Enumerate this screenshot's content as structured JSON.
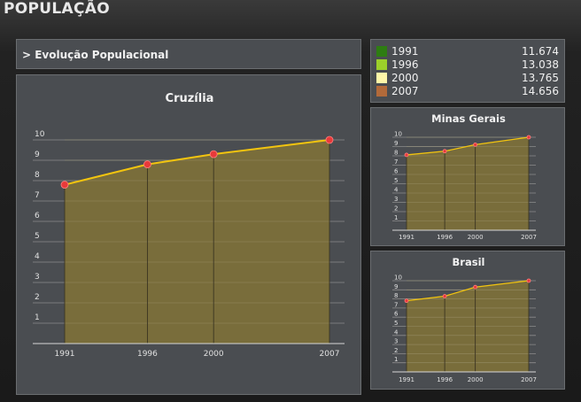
{
  "page_title": "POPULAÇÃO",
  "header_label": "> Evolução Populacional",
  "legend": [
    {
      "year": "1991",
      "value": "11.674",
      "color": "#2e7d12"
    },
    {
      "year": "1996",
      "value": "13.038",
      "color": "#9ccf2a"
    },
    {
      "year": "2000",
      "value": "13.765",
      "color": "#fff7a8"
    },
    {
      "year": "2007",
      "value": "14.656",
      "color": "#b26a3a"
    }
  ],
  "chart_data": [
    {
      "type": "area",
      "title": "Cruzília",
      "categories": [
        "1991",
        "1996",
        "2000",
        "2007"
      ],
      "x": [
        1991,
        1996,
        2000,
        2007
      ],
      "values": [
        7.8,
        8.8,
        9.3,
        10.0
      ],
      "ylim": [
        0,
        10
      ],
      "yticks": [
        "1",
        "2",
        "3",
        "4",
        "5",
        "6",
        "7",
        "8",
        "9",
        "10"
      ]
    },
    {
      "type": "area",
      "title": "Minas Gerais",
      "categories": [
        "1991",
        "1996",
        "2000",
        "2007"
      ],
      "x": [
        1991,
        1996,
        2000,
        2007
      ],
      "values": [
        8.1,
        8.5,
        9.2,
        10.0
      ],
      "ylim": [
        0,
        10
      ],
      "yticks": [
        "1",
        "2",
        "3",
        "4",
        "5",
        "6",
        "7",
        "8",
        "9",
        "10"
      ]
    },
    {
      "type": "area",
      "title": "Brasil",
      "categories": [
        "1991",
        "1996",
        "2000",
        "2007"
      ],
      "x": [
        1991,
        1996,
        2000,
        2007
      ],
      "values": [
        7.8,
        8.3,
        9.3,
        10.0
      ],
      "ylim": [
        0,
        10
      ],
      "yticks": [
        "1",
        "2",
        "3",
        "4",
        "5",
        "6",
        "7",
        "8",
        "9",
        "10"
      ]
    }
  ]
}
